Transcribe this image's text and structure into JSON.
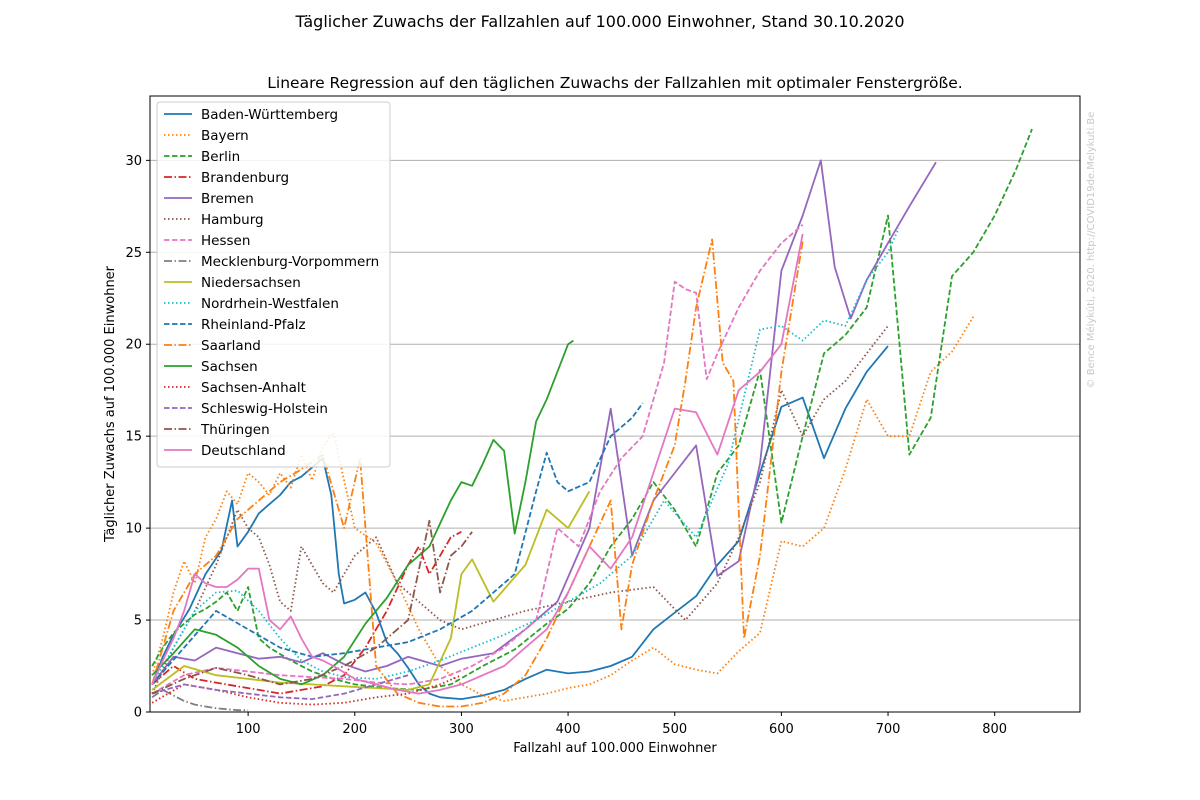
{
  "figure": {
    "suptitle": "Täglicher Zuwachs der Fallzahlen auf 100.000 Einwohner, Stand 30.10.2020",
    "watermark": "© Bence Mélykúti, 2020. http://COVID19de.Melykuti.Be"
  },
  "chart_data": {
    "type": "line",
    "title": "Lineare Regression auf den täglichen Zuwachs der Fallzahlen mit optimaler Fenstergröße.",
    "xlabel": "Fallzahl auf 100.000 Einwohner",
    "ylabel": "Täglicher Zuwachs auf 100.000 Einwohner",
    "xlim": [
      8,
      880
    ],
    "ylim": [
      0,
      33.5
    ],
    "xticks": [
      100,
      200,
      300,
      400,
      500,
      600,
      700,
      800
    ],
    "yticks": [
      0,
      5,
      10,
      15,
      20,
      25,
      30
    ],
    "grid": "horizontal",
    "legend_position": "top-left",
    "series": [
      {
        "name": "Baden-Württemberg",
        "color": "#1f77b4",
        "dash": "solid",
        "x": [
          10,
          20,
          30,
          45,
          60,
          75,
          85,
          90,
          100,
          110,
          120,
          130,
          140,
          150,
          160,
          170,
          178,
          185,
          190,
          200,
          210,
          220,
          230,
          240,
          250,
          260,
          270,
          280,
          300,
          320,
          340,
          360,
          380,
          400,
          420,
          440,
          460,
          480,
          500,
          520,
          540,
          560,
          580,
          600,
          620,
          640,
          660,
          680,
          700
        ],
        "y": [
          1.5,
          3.0,
          4.2,
          5.6,
          7.5,
          8.8,
          11.5,
          9.0,
          9.8,
          10.8,
          11.3,
          11.8,
          12.5,
          12.8,
          13.3,
          13.8,
          11.8,
          7.5,
          5.9,
          6.1,
          6.5,
          5.4,
          3.8,
          3.2,
          2.4,
          1.5,
          1.0,
          0.8,
          0.7,
          0.9,
          1.2,
          1.8,
          2.3,
          2.1,
          2.2,
          2.5,
          3.0,
          4.5,
          5.4,
          6.3,
          8.0,
          9.3,
          13.0,
          16.6,
          17.1,
          13.8,
          16.5,
          18.5,
          19.9
        ]
      },
      {
        "name": "Bayern",
        "color": "#ff7f0e",
        "dash": "dotted",
        "x": [
          10,
          20,
          30,
          40,
          50,
          60,
          70,
          80,
          90,
          100,
          110,
          120,
          130,
          140,
          150,
          160,
          170,
          180,
          190,
          200,
          220,
          240,
          260,
          280,
          300,
          320,
          340,
          360,
          380,
          400,
          420,
          440,
          460,
          480,
          500,
          520,
          540,
          560,
          580,
          600,
          620,
          640,
          660,
          680,
          700,
          720,
          740,
          760,
          780
        ],
        "y": [
          2.0,
          4.0,
          6.5,
          8.2,
          7.0,
          9.5,
          10.5,
          12.0,
          11.3,
          13.0,
          12.5,
          11.8,
          13.0,
          12.2,
          14.0,
          12.6,
          14.4,
          15.2,
          12.6,
          10.0,
          9.2,
          7.0,
          4.5,
          2.5,
          1.5,
          0.9,
          0.6,
          0.8,
          1.0,
          1.3,
          1.5,
          2.0,
          2.8,
          3.5,
          2.6,
          2.3,
          2.1,
          3.3,
          4.3,
          9.3,
          9.0,
          10.0,
          13.2,
          17.0,
          15.0,
          15.0,
          18.5,
          19.6,
          21.5
        ]
      },
      {
        "name": "Berlin",
        "color": "#2ca02c",
        "dash": "dashed",
        "x": [
          10,
          20,
          30,
          40,
          50,
          60,
          70,
          80,
          90,
          100,
          110,
          120,
          140,
          160,
          180,
          200,
          230,
          260,
          290,
          320,
          350,
          380,
          400,
          420,
          440,
          460,
          480,
          500,
          520,
          540,
          560,
          580,
          600,
          620,
          640,
          660,
          680,
          700,
          720,
          740,
          760,
          780,
          800,
          820,
          835
        ],
        "y": [
          2.5,
          3.5,
          4.3,
          4.8,
          5.3,
          5.6,
          6.0,
          6.5,
          5.5,
          6.8,
          4.0,
          3.5,
          2.8,
          2.2,
          1.8,
          1.5,
          1.3,
          1.2,
          1.5,
          2.5,
          3.4,
          4.8,
          5.6,
          7.0,
          9.0,
          10.5,
          12.5,
          11.0,
          9.0,
          13.0,
          14.5,
          18.6,
          10.3,
          15.0,
          19.5,
          20.5,
          22.0,
          27.0,
          14.0,
          16.0,
          23.7,
          25.0,
          27.0,
          29.5,
          31.7
        ]
      },
      {
        "name": "Brandenburg",
        "color": "#d62728",
        "dash": "dashdot",
        "x": [
          10,
          30,
          50,
          70,
          90,
          110,
          130,
          150,
          170,
          190,
          210,
          230,
          250,
          260,
          270,
          280,
          290,
          300
        ],
        "y": [
          1.5,
          2.5,
          1.8,
          1.6,
          1.4,
          1.2,
          1.0,
          1.2,
          1.4,
          2.0,
          3.5,
          5.5,
          8.0,
          9.0,
          7.5,
          8.5,
          9.5,
          9.8
        ]
      },
      {
        "name": "Bremen",
        "color": "#9467bd",
        "dash": "solid",
        "x": [
          10,
          30,
          50,
          70,
          90,
          110,
          130,
          150,
          170,
          190,
          210,
          230,
          250,
          280,
          300,
          330,
          360,
          390,
          420,
          440,
          460,
          480,
          500,
          520,
          540,
          560,
          580,
          600,
          620,
          637,
          650,
          665,
          680,
          700,
          720,
          745
        ],
        "y": [
          1.5,
          3.0,
          2.8,
          3.5,
          3.2,
          2.9,
          3.0,
          2.7,
          3.2,
          2.6,
          2.2,
          2.5,
          3.0,
          2.5,
          2.9,
          3.2,
          4.5,
          6.0,
          10.0,
          16.5,
          8.5,
          11.5,
          13.0,
          14.5,
          7.4,
          8.2,
          13.5,
          24.0,
          27.0,
          30.0,
          24.2,
          21.4,
          23.5,
          25.5,
          27.5,
          29.9
        ]
      },
      {
        "name": "Hamburg",
        "color": "#8c564b",
        "dash": "dotted",
        "x": [
          10,
          30,
          50,
          70,
          90,
          100,
          110,
          120,
          130,
          140,
          150,
          160,
          170,
          180,
          190,
          200,
          220,
          240,
          260,
          280,
          300,
          330,
          360,
          400,
          440,
          480,
          510,
          540,
          560,
          580,
          600,
          620,
          640,
          660,
          680,
          700
        ],
        "y": [
          1.0,
          3.5,
          5.5,
          8.0,
          11.0,
          10.0,
          9.5,
          8.0,
          6.0,
          5.5,
          9.0,
          8.0,
          7.0,
          6.5,
          7.5,
          8.5,
          9.5,
          7.0,
          6.0,
          5.0,
          4.5,
          5.0,
          5.5,
          6.0,
          6.5,
          6.8,
          5.0,
          7.0,
          9.5,
          12.5,
          17.5,
          15.0,
          17.0,
          18.0,
          19.5,
          21.0
        ]
      },
      {
        "name": "Hessen",
        "color": "#e377c2",
        "dash": "dashed",
        "x": [
          10,
          40,
          70,
          100,
          130,
          160,
          190,
          220,
          250,
          280,
          310,
          340,
          370,
          390,
          410,
          430,
          450,
          470,
          490,
          500,
          510,
          520,
          530,
          540,
          560,
          580,
          600,
          620
        ],
        "y": [
          1.0,
          2.0,
          2.4,
          2.2,
          2.0,
          1.9,
          1.8,
          1.6,
          1.5,
          1.8,
          2.5,
          3.5,
          5.0,
          10.0,
          9.0,
          12.0,
          13.8,
          15.0,
          19.0,
          23.4,
          23.0,
          22.8,
          18.1,
          19.5,
          22.0,
          24.0,
          25.5,
          26.5
        ]
      },
      {
        "name": "Mecklenburg-Vorpommern",
        "color": "#7f7f7f",
        "dash": "dashdot",
        "x": [
          10,
          20,
          30,
          40,
          50,
          60,
          70,
          80,
          90,
          100
        ],
        "y": [
          0.8,
          1.2,
          0.9,
          0.6,
          0.4,
          0.3,
          0.2,
          0.15,
          0.1,
          0.1
        ]
      },
      {
        "name": "Niedersachsen",
        "color": "#bcbd22",
        "dash": "solid",
        "x": [
          10,
          40,
          70,
          100,
          130,
          160,
          190,
          220,
          250,
          270,
          290,
          300,
          310,
          330,
          360,
          380,
          400,
          420
        ],
        "y": [
          1.2,
          2.5,
          2.0,
          1.8,
          1.6,
          1.5,
          1.4,
          1.3,
          1.2,
          1.5,
          4.0,
          7.5,
          8.3,
          6.0,
          8.0,
          11.0,
          10.0,
          12.0
        ]
      },
      {
        "name": "Nordrhein-Westfalen",
        "color": "#17becf",
        "dash": "dotted",
        "x": [
          10,
          30,
          50,
          70,
          90,
          110,
          130,
          150,
          170,
          190,
          220,
          250,
          280,
          310,
          340,
          370,
          400,
          430,
          460,
          490,
          520,
          550,
          580,
          600,
          620,
          640,
          660,
          680,
          700,
          710
        ],
        "y": [
          1.5,
          3.5,
          5.5,
          6.5,
          6.6,
          5.5,
          4.0,
          2.8,
          2.2,
          1.9,
          1.8,
          2.2,
          2.8,
          3.5,
          4.2,
          5.0,
          6.0,
          7.0,
          8.5,
          11.5,
          9.5,
          13.5,
          20.8,
          21.0,
          20.2,
          21.3,
          21.0,
          23.5,
          25.0,
          26.3
        ]
      },
      {
        "name": "Rheinland-Pfalz",
        "color": "#1f77b4",
        "dash": "dashed",
        "x": [
          10,
          40,
          70,
          100,
          130,
          160,
          190,
          220,
          250,
          280,
          310,
          330,
          350,
          370,
          380,
          390,
          400,
          420,
          440,
          460,
          470
        ],
        "y": [
          1.5,
          3.5,
          5.5,
          4.5,
          3.5,
          3.0,
          3.2,
          3.5,
          3.8,
          4.5,
          5.5,
          6.5,
          7.5,
          12.0,
          14.1,
          12.5,
          12.0,
          12.5,
          15.0,
          16.0,
          16.8
        ]
      },
      {
        "name": "Saarland",
        "color": "#ff7f0e",
        "dash": "dashdot",
        "x": [
          10,
          30,
          50,
          70,
          90,
          110,
          130,
          150,
          170,
          190,
          205,
          220,
          240,
          260,
          280,
          300,
          320,
          340,
          360,
          380,
          400,
          420,
          440,
          450,
          460,
          480,
          500,
          510,
          520,
          535,
          545,
          555,
          565,
          580,
          600,
          620
        ],
        "y": [
          1.5,
          5.5,
          7.5,
          8.5,
          10.5,
          11.5,
          12.5,
          13.2,
          14.0,
          10.0,
          13.8,
          2.5,
          1.0,
          0.5,
          0.3,
          0.3,
          0.5,
          1.0,
          2.0,
          4.0,
          6.5,
          9.0,
          11.5,
          4.5,
          8.0,
          11.5,
          14.5,
          18.0,
          22.0,
          25.7,
          19.0,
          18.0,
          4.0,
          8.5,
          18.5,
          25.6
        ]
      },
      {
        "name": "Sachsen",
        "color": "#2ca02c",
        "dash": "solid",
        "x": [
          10,
          30,
          50,
          70,
          90,
          110,
          130,
          150,
          170,
          190,
          210,
          230,
          250,
          270,
          290,
          300,
          310,
          320,
          330,
          340,
          350,
          360,
          370,
          380,
          390,
          400,
          405
        ],
        "y": [
          2.0,
          3.2,
          4.5,
          4.2,
          3.5,
          2.5,
          1.8,
          1.5,
          2.0,
          3.0,
          4.8,
          6.2,
          8.0,
          9.0,
          11.5,
          12.5,
          12.3,
          13.5,
          14.8,
          14.2,
          9.7,
          12.5,
          15.8,
          17.0,
          18.5,
          20.0,
          20.2
        ]
      },
      {
        "name": "Sachsen-Anhalt",
        "color": "#d62728",
        "dash": "dotted",
        "x": [
          10,
          40,
          70,
          100,
          130,
          160,
          190,
          220,
          250,
          280,
          300
        ],
        "y": [
          0.5,
          1.5,
          1.2,
          0.8,
          0.5,
          0.4,
          0.5,
          0.8,
          1.0,
          1.5,
          2.0
        ]
      },
      {
        "name": "Schleswig-Holstein",
        "color": "#9467bd",
        "dash": "dashed",
        "x": [
          10,
          40,
          70,
          100,
          130,
          160,
          190,
          220,
          250
        ],
        "y": [
          1.0,
          1.5,
          1.2,
          1.0,
          0.8,
          0.7,
          1.0,
          1.5,
          2.0
        ]
      },
      {
        "name": "Thüringen",
        "color": "#8c564b",
        "dash": "dashdot",
        "x": [
          10,
          40,
          70,
          100,
          130,
          160,
          190,
          220,
          250,
          270,
          280,
          290,
          300,
          310
        ],
        "y": [
          1.0,
          1.8,
          2.4,
          2.0,
          1.5,
          1.8,
          2.5,
          3.5,
          5.0,
          10.4,
          6.5,
          8.5,
          9.0,
          9.8
        ]
      },
      {
        "name": "Deutschland",
        "color": "#e377c2",
        "dash": "solid",
        "x": [
          10,
          20,
          30,
          40,
          50,
          60,
          70,
          80,
          90,
          100,
          110,
          120,
          130,
          140,
          150,
          160,
          170,
          180,
          200,
          220,
          240,
          260,
          280,
          300,
          320,
          340,
          360,
          380,
          400,
          420,
          440,
          460,
          480,
          500,
          520,
          540,
          560,
          580,
          600,
          620
        ],
        "y": [
          1.5,
          2.8,
          4.0,
          5.5,
          7.5,
          7.0,
          6.8,
          6.8,
          7.2,
          7.8,
          7.8,
          5.0,
          4.5,
          5.2,
          4.0,
          3.0,
          2.8,
          2.5,
          1.8,
          1.5,
          1.2,
          1.0,
          1.2,
          1.5,
          2.0,
          2.5,
          3.5,
          4.5,
          6.5,
          9.0,
          7.8,
          9.5,
          13.0,
          16.5,
          16.3,
          14.0,
          17.5,
          18.5,
          20.0,
          26.0
        ]
      }
    ]
  }
}
